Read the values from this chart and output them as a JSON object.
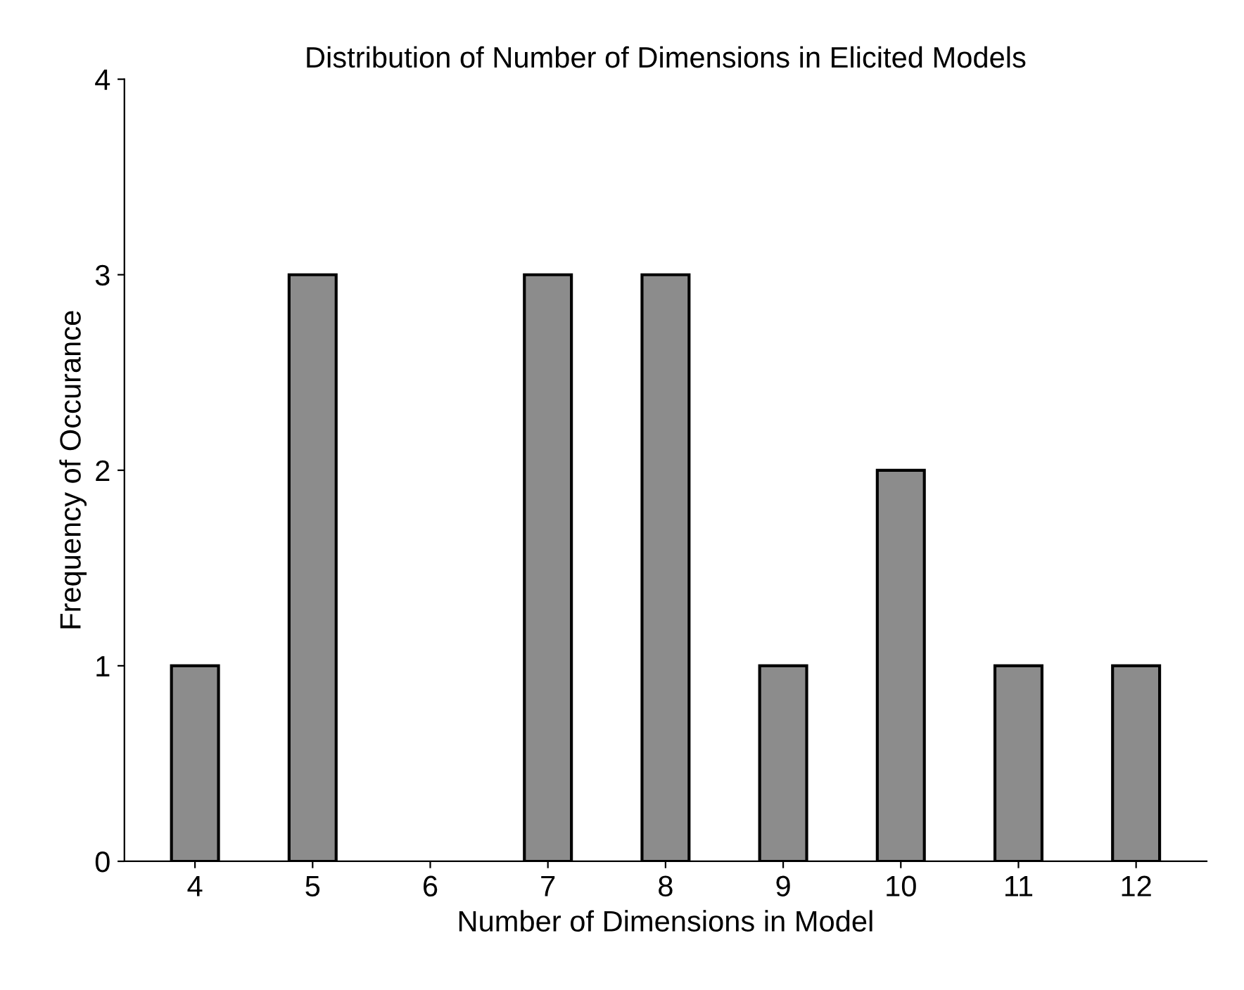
{
  "chart_data": {
    "type": "bar",
    "title": "Distribution of Number of Dimensions in Elicited Models",
    "xlabel": "Number of Dimensions in Model",
    "ylabel": "Frequency of Occurance",
    "categories": [
      "4",
      "5",
      "6",
      "7",
      "8",
      "9",
      "10",
      "11",
      "12"
    ],
    "values": [
      1,
      3,
      0,
      3,
      3,
      1,
      2,
      1,
      1
    ],
    "color": "#8c8c8c",
    "ylim": [
      0,
      4
    ],
    "yticks": [
      0,
      1,
      2,
      3,
      4
    ],
    "grid": false,
    "legend": false
  }
}
